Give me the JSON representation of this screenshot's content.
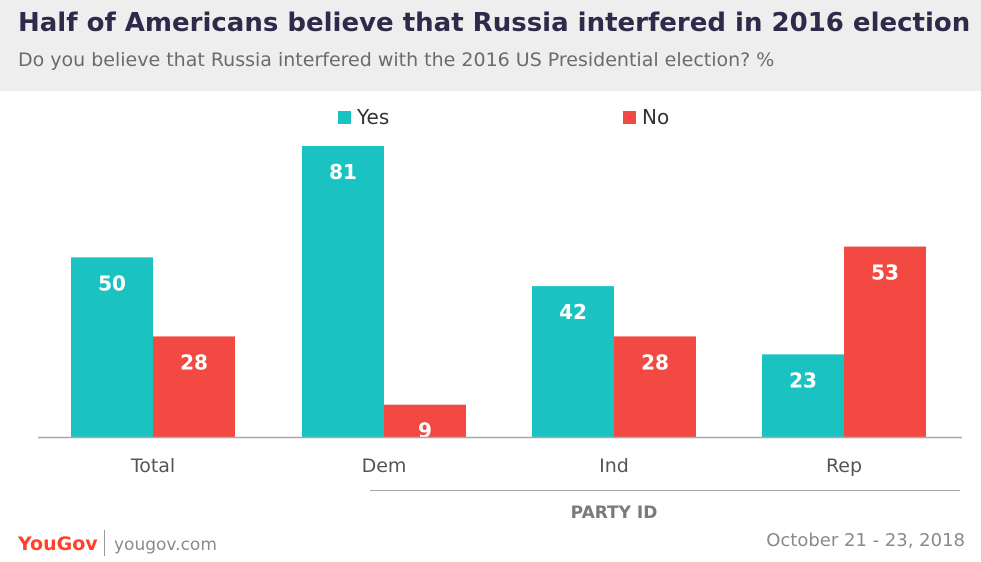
{
  "header": {
    "title": "Half of Americans believe that Russia interfered in 2016 election",
    "subtitle": "Do you believe that Russia interfered with the 2016 US Presidential election? %"
  },
  "chart_data": {
    "type": "bar",
    "title": "Half of Americans believe that Russia interfered in 2016 election",
    "subtitle": "Do you believe that Russia interfered with the 2016 US Presidential election? %",
    "categories": [
      "Total",
      "Dem",
      "Ind",
      "Rep"
    ],
    "series": [
      {
        "name": "Yes",
        "color": "#1ac3c1",
        "values": [
          50,
          81,
          42,
          23
        ]
      },
      {
        "name": "No",
        "color": "#f24a43",
        "values": [
          28,
          9,
          28,
          53
        ]
      }
    ],
    "group_label": "PARTY ID",
    "group_label_covers": [
      "Dem",
      "Ind",
      "Rep"
    ],
    "ylim": [
      0,
      81
    ],
    "legend_position": "top-center",
    "grid": false
  },
  "footer": {
    "brand": "YouGov",
    "url": "yougov.com",
    "date": "October 21 - 23, 2018"
  }
}
